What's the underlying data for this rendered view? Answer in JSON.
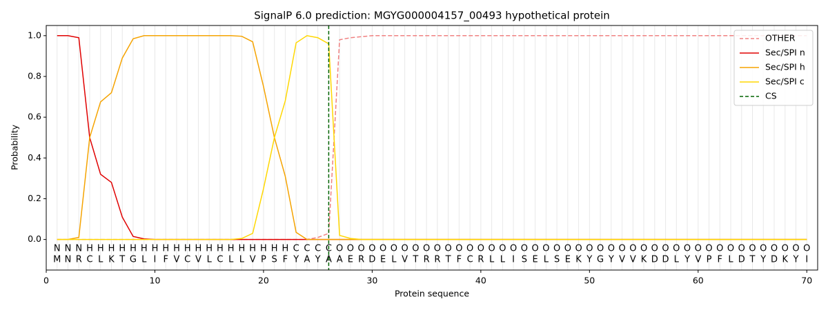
{
  "chart_data": {
    "type": "line",
    "title": "SignalP 6.0 prediction: MGYG000004157_00493 hypothetical protein",
    "x_label": "Protein sequence",
    "y_label": "Probability",
    "xlim": [
      0,
      71
    ],
    "ylim": [
      -0.15,
      1.05
    ],
    "xticks": [
      0,
      10,
      20,
      30,
      40,
      50,
      60,
      70
    ],
    "yticks": [
      {
        "value": 0,
        "label": "0.0"
      },
      {
        "value": 0.2,
        "label": "0.2"
      },
      {
        "value": 0.4,
        "label": "0.4"
      },
      {
        "value": 0.6,
        "label": "0.6"
      },
      {
        "value": 0.8,
        "label": "0.8"
      },
      {
        "value": 1,
        "label": "1.0"
      }
    ],
    "grid": true,
    "legend": "upper right",
    "x": [
      1,
      2,
      3,
      4,
      5,
      6,
      7,
      8,
      9,
      10,
      11,
      12,
      13,
      14,
      15,
      16,
      17,
      18,
      19,
      20,
      21,
      22,
      23,
      24,
      25,
      26,
      27,
      28,
      29,
      30,
      31,
      32,
      33,
      34,
      35,
      36,
      37,
      38,
      39,
      40,
      41,
      42,
      43,
      44,
      45,
      46,
      47,
      48,
      49,
      50,
      51,
      52,
      53,
      54,
      55,
      56,
      57,
      58,
      59,
      60,
      61,
      62,
      63,
      64,
      65,
      66,
      67,
      68,
      69,
      70
    ],
    "labels": [
      "N",
      "N",
      "N",
      "H",
      "H",
      "H",
      "H",
      "H",
      "H",
      "H",
      "H",
      "H",
      "H",
      "H",
      "H",
      "H",
      "H",
      "H",
      "H",
      "H",
      "H",
      "H",
      "C",
      "C",
      "C",
      "C",
      "O",
      "O",
      "O",
      "O",
      "O",
      "O",
      "O",
      "O",
      "O",
      "O",
      "O",
      "O",
      "O",
      "O",
      "O",
      "O",
      "O",
      "O",
      "O",
      "O",
      "O",
      "O",
      "O",
      "O",
      "O",
      "O",
      "O",
      "O",
      "O",
      "O",
      "O",
      "O",
      "O",
      "O",
      "O",
      "O",
      "O",
      "O",
      "O",
      "O",
      "O",
      "O",
      "O",
      "O"
    ],
    "label_colors": {
      "N": "#e00000",
      "H": "#f5a300",
      "C": "#f2c200",
      "O": "#808080"
    },
    "sequence": [
      "M",
      "N",
      "R",
      "C",
      "L",
      "K",
      "T",
      "G",
      "L",
      "I",
      "F",
      "V",
      "C",
      "V",
      "L",
      "C",
      "L",
      "L",
      "V",
      "P",
      "S",
      "F",
      "Y",
      "A",
      "Y",
      "A",
      "A",
      "E",
      "R",
      "D",
      "E",
      "L",
      "V",
      "T",
      "R",
      "R",
      "T",
      "F",
      "C",
      "R",
      "L",
      "L",
      "I",
      "S",
      "E",
      "L",
      "S",
      "E",
      "K",
      "Y",
      "G",
      "Y",
      "V",
      "V",
      "K",
      "D",
      "D",
      "L",
      "Y",
      "V",
      "P",
      "F",
      "L",
      "D",
      "T",
      "Y",
      "D",
      "K",
      "Y",
      "I"
    ],
    "series": [
      {
        "name": "OTHER",
        "color": "#f08080",
        "dashed": true,
        "values": [
          0,
          0,
          0,
          0,
          0,
          0,
          0,
          0,
          0,
          0,
          0,
          0,
          0,
          0,
          0,
          0,
          0,
          0,
          0,
          0,
          0,
          0,
          0,
          0,
          0.01,
          0.03,
          0.98,
          0.99,
          0.995,
          1,
          1,
          1,
          1,
          1,
          1,
          1,
          1,
          1,
          1,
          1,
          1,
          1,
          1,
          1,
          1,
          1,
          1,
          1,
          1,
          1,
          1,
          1,
          1,
          1,
          1,
          1,
          1,
          1,
          1,
          1,
          1,
          1,
          1,
          1,
          1,
          1,
          1,
          1,
          1,
          1
        ]
      },
      {
        "name": "Sec/SPI n",
        "color": "#e00000",
        "values": [
          1,
          1,
          0.99,
          0.5,
          0.32,
          0.28,
          0.11,
          0.015,
          0.003,
          0,
          0,
          0,
          0,
          0,
          0,
          0,
          0,
          0,
          0,
          0,
          0,
          0,
          0,
          0,
          0,
          0,
          0,
          0,
          0,
          0,
          0,
          0,
          0,
          0,
          0,
          0,
          0,
          0,
          0,
          0,
          0,
          0,
          0,
          0,
          0,
          0,
          0,
          0,
          0,
          0,
          0,
          0,
          0,
          0,
          0,
          0,
          0,
          0,
          0,
          0,
          0,
          0,
          0,
          0,
          0,
          0,
          0,
          0,
          0,
          0
        ]
      },
      {
        "name": "Sec/SPI h",
        "color": "#f5a300",
        "values": [
          0,
          0,
          0.01,
          0.5,
          0.675,
          0.72,
          0.89,
          0.985,
          1,
          1,
          1,
          1,
          1,
          1,
          1,
          1,
          1,
          0.997,
          0.97,
          0.75,
          0.5,
          0.31,
          0.035,
          0,
          0,
          0,
          0,
          0,
          0,
          0,
          0,
          0,
          0,
          0,
          0,
          0,
          0,
          0,
          0,
          0,
          0,
          0,
          0,
          0,
          0,
          0,
          0,
          0,
          0,
          0,
          0,
          0,
          0,
          0,
          0,
          0,
          0,
          0,
          0,
          0,
          0,
          0,
          0,
          0,
          0,
          0,
          0,
          0,
          0,
          0
        ]
      },
      {
        "name": "Sec/SPI c",
        "color": "#ffd700",
        "values": [
          0,
          0,
          0,
          0,
          0,
          0,
          0,
          0,
          0,
          0,
          0,
          0,
          0,
          0,
          0,
          0,
          0,
          0.005,
          0.03,
          0.25,
          0.5,
          0.68,
          0.965,
          1,
          0.99,
          0.96,
          0.02,
          0.005,
          0,
          0,
          0,
          0,
          0,
          0,
          0,
          0,
          0,
          0,
          0,
          0,
          0,
          0,
          0,
          0,
          0,
          0,
          0,
          0,
          0,
          0,
          0,
          0,
          0,
          0,
          0,
          0,
          0,
          0,
          0,
          0,
          0,
          0,
          0,
          0,
          0,
          0,
          0,
          0,
          0,
          0
        ]
      }
    ],
    "cs": {
      "name": "CS",
      "x": 26,
      "color": "#006400"
    }
  }
}
